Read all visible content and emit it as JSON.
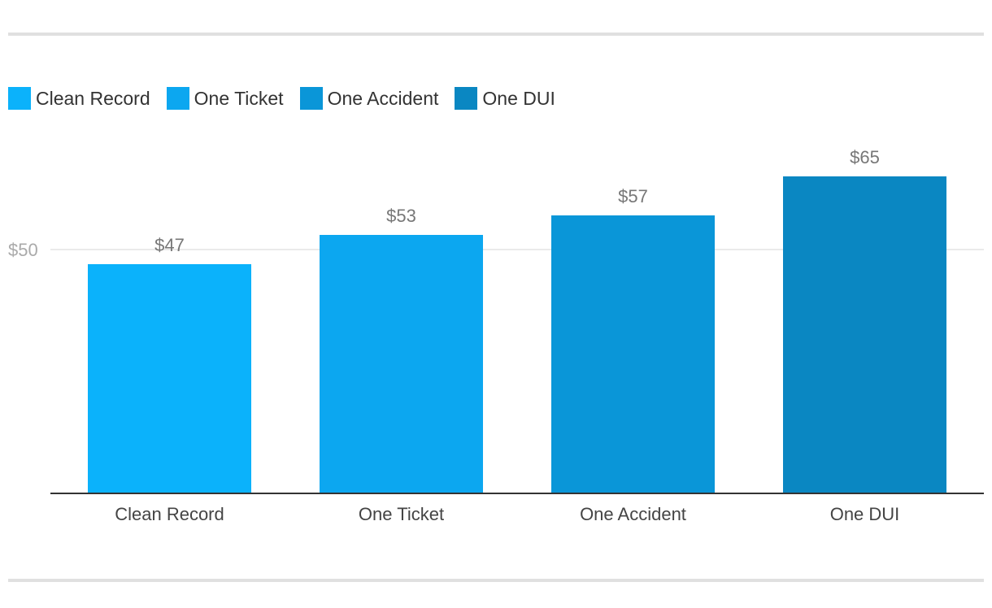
{
  "chart_data": {
    "type": "bar",
    "categories": [
      "Clean Record",
      "One Ticket",
      "One Accident",
      "One DUI"
    ],
    "values": [
      47,
      53,
      57,
      65
    ],
    "data_labels": [
      "$47",
      "$53",
      "$57",
      "$65"
    ],
    "colors": [
      "#0bb2fb",
      "#0ca7f0",
      "#0a96d8",
      "#0a87c2"
    ],
    "yticks": [
      50
    ],
    "ytick_labels": [
      "$50"
    ],
    "ylim": [
      0,
      100
    ],
    "grid": true,
    "legend": {
      "position": "top-left",
      "entries": [
        "Clean Record",
        "One Ticket",
        "One Accident",
        "One DUI"
      ]
    },
    "title": "",
    "xlabel": "",
    "ylabel": ""
  }
}
